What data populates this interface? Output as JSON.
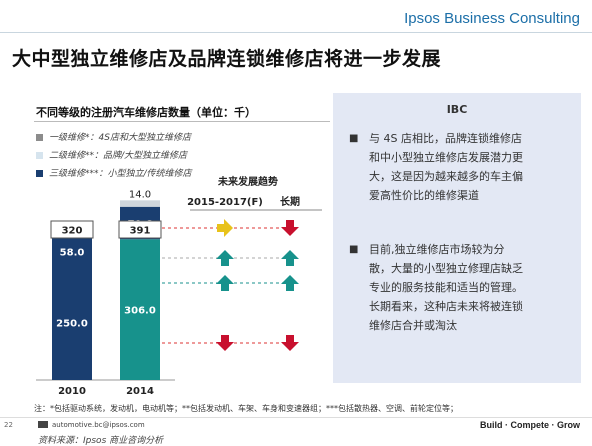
{
  "brand": "Ipsos Business Consulting",
  "title": "大中型独立维修店及品牌连锁维修店将进一步发展",
  "chart_title": "不同等级的注册汽车维修店数量（单位：千）",
  "legend": [
    {
      "label": "一级维修*：4S店和大型独立维修店",
      "color": "#8c8c8c"
    },
    {
      "label": "二级维修**：品牌/大型独立维修店",
      "color": "#d6e4ee"
    },
    {
      "label": "三级维修***：小型独立/传统维修店",
      "color": "#1a3e70"
    }
  ],
  "trend_header": "未来发展趋势",
  "trend_cols": [
    "2015-2017(F)",
    "长期"
  ],
  "chart_data": {
    "type": "bar",
    "stacked": true,
    "title": "不同等级的注册汽车维修店数量（单位：千）",
    "categories": [
      "2010",
      "2014"
    ],
    "series": [
      {
        "name": "三级维修***：小型独立/传统维修店",
        "values": [
          250.0,
          306.0
        ],
        "colors": [
          "#1a3e70",
          "#17928c"
        ]
      },
      {
        "name": "二级维修**：品牌/大型独立维修店",
        "values": [
          58.0,
          70.6
        ],
        "colors": [
          "#1a3e70",
          "#1a3e70"
        ]
      },
      {
        "name": "一级维修*：4S店和大型独立维修店",
        "values": [
          12.0,
          14.0
        ],
        "colors": [
          "#cfd6dc",
          "#cfd6dc"
        ]
      }
    ],
    "totals": [
      320,
      391
    ],
    "ylim": [
      0,
      400
    ],
    "trends": [
      {
        "series": "一级维修",
        "near": "right",
        "long": "down"
      },
      {
        "series": "二级维修",
        "near": "up",
        "long": "up"
      },
      {
        "series": "三级维修",
        "near": "up",
        "long": "up"
      },
      {
        "series": "三级维修-小型",
        "near": "down",
        "long": "down"
      }
    ]
  },
  "ibc": {
    "title": "IBC",
    "points": [
      {
        "lines": [
          "与 4S 店相比，品牌连锁维修店",
          "和中小型独立维修店发展潜力更",
          "大，这是因为越来越多的车主偏",
          "爱高性价比的维修渠道"
        ]
      },
      {
        "lines": [
          "目前,独立维修店市场较为分",
          "散，大量的小型独立修理店缺乏",
          "专业的服务技能和适当的管理。",
          "长期看来，这种店未来将被连锁",
          "维修店合并或淘汰"
        ]
      }
    ]
  },
  "footnote": "注：*包括驱动系统，发动机，电动机等；**包括发动机、车架、车身和变速器组；***包括散热器、空调、前轮定位等；",
  "page_number": "22",
  "email": "automotive.bc@ipsos.com",
  "source": "资料来源：Ipsos 商业咨询分析",
  "tagline": "Build · Compete · Grow"
}
